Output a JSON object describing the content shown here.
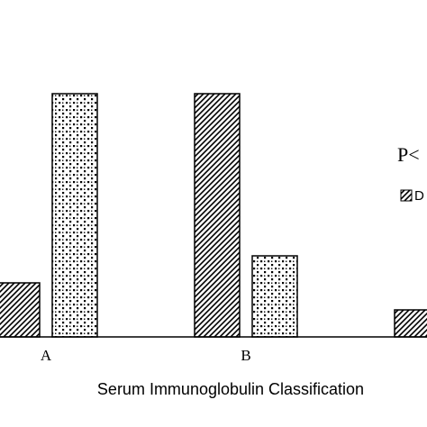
{
  "chart_data": {
    "type": "bar",
    "categories": [
      "A",
      "B",
      ""
    ],
    "series": [
      {
        "name": "D",
        "pattern": "diagonal-hatch",
        "values": [
          20,
          90,
          10
        ]
      },
      {
        "name": "",
        "pattern": "dotted",
        "values": [
          90,
          30,
          null
        ]
      }
    ],
    "xlabel": "Serum Immunoglobulin Classification",
    "ylabel": "",
    "ylim": [
      0,
      100
    ],
    "grid": false,
    "annotation": "P<",
    "legend_position": "right"
  }
}
